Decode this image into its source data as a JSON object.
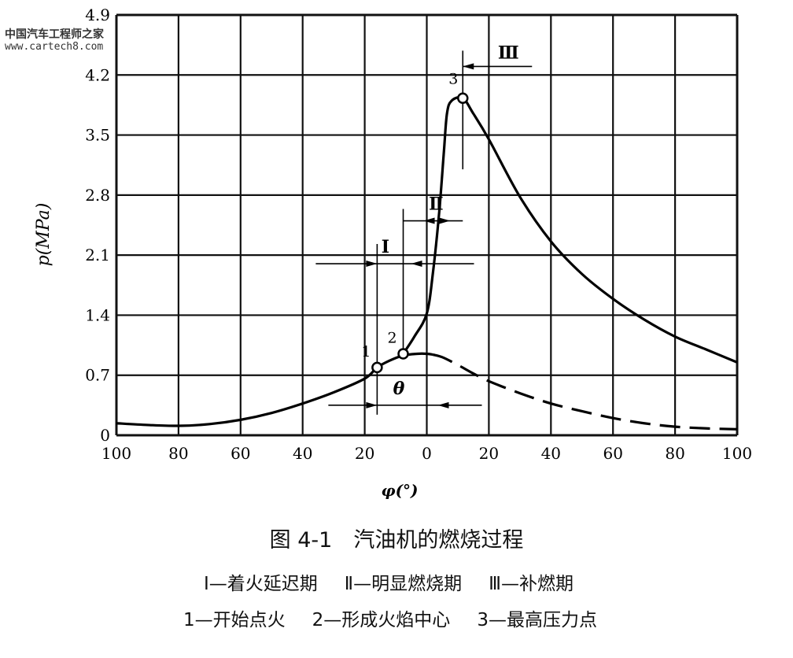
{
  "watermark": {
    "name": "中国汽车工程师之家",
    "url": "www.cartech8.com"
  },
  "chart_data": {
    "type": "line",
    "title": "图 4-1　汽油机的燃烧过程",
    "xlabel": "φ(°)",
    "ylabel": "p(MPa)",
    "xlim": [
      -100,
      100
    ],
    "ylim": [
      0,
      4.9
    ],
    "grid": true,
    "x_ticks": [
      -100,
      -80,
      -60,
      -40,
      -20,
      0,
      20,
      40,
      60,
      80,
      100
    ],
    "x_tick_labels": [
      "100",
      "80",
      "60",
      "40",
      "20",
      "0",
      "20",
      "40",
      "60",
      "80",
      "100"
    ],
    "y_ticks": [
      0,
      0.7,
      1.4,
      2.1,
      2.8,
      3.5,
      4.2,
      4.9
    ],
    "y_tick_labels": [
      "0",
      "0.7",
      "1.4",
      "2.1",
      "2.8",
      "3.5",
      "4.2",
      "4.9"
    ],
    "series": [
      {
        "style": "solid",
        "points": [
          [
            -100,
            0.14
          ],
          [
            -90,
            0.12
          ],
          [
            -80,
            0.11
          ],
          [
            -70,
            0.13
          ],
          [
            -60,
            0.18
          ],
          [
            -50,
            0.26
          ],
          [
            -40,
            0.37
          ],
          [
            -30,
            0.5
          ],
          [
            -20,
            0.66
          ],
          [
            -16,
            0.79
          ],
          [
            -12,
            0.87
          ],
          [
            -7.6,
            0.93
          ],
          [
            -3,
            0.95
          ],
          [
            0,
            0.95
          ],
          [
            2,
            0.94
          ]
        ]
      },
      {
        "style": "dashed",
        "points": [
          [
            2,
            0.94
          ],
          [
            5,
            0.91
          ],
          [
            10,
            0.82
          ],
          [
            15,
            0.72
          ],
          [
            20,
            0.63
          ],
          [
            30,
            0.49
          ],
          [
            40,
            0.37
          ],
          [
            50,
            0.28
          ],
          [
            60,
            0.2
          ],
          [
            70,
            0.14
          ],
          [
            80,
            0.1
          ],
          [
            90,
            0.08
          ],
          [
            100,
            0.07
          ]
        ]
      },
      {
        "style": "solid",
        "points": [
          [
            -7.6,
            0.95
          ],
          [
            -4,
            1.15
          ],
          [
            0,
            1.42
          ],
          [
            2,
            1.9
          ],
          [
            4,
            2.6
          ],
          [
            5.5,
            3.3
          ],
          [
            6.5,
            3.75
          ],
          [
            8,
            3.9
          ],
          [
            11.6,
            3.93
          ],
          [
            15,
            3.75
          ],
          [
            20,
            3.45
          ],
          [
            30,
            2.78
          ],
          [
            40,
            2.26
          ],
          [
            50,
            1.88
          ],
          [
            60,
            1.59
          ],
          [
            70,
            1.35
          ],
          [
            80,
            1.15
          ],
          [
            90,
            1.0
          ],
          [
            100,
            0.85
          ]
        ]
      }
    ],
    "markers": [
      {
        "label": "1",
        "x": -16,
        "y": 0.79
      },
      {
        "label": "2",
        "x": -7.6,
        "y": 0.95
      },
      {
        "label": "3",
        "x": 11.6,
        "y": 3.93
      }
    ],
    "intervals": [
      {
        "label": "Ⅰ",
        "from": -16,
        "to": -7.6,
        "p": 2.0
      },
      {
        "label": "Ⅱ",
        "from": -7.6,
        "to": 11.6,
        "p": 2.5
      },
      {
        "label": "Ⅲ",
        "from": 11.6,
        "to": 18,
        "p": 4.3
      },
      {
        "label": "θ",
        "from": -16,
        "to": 0,
        "p": 0.35
      }
    ],
    "legend_lines": [
      "Ⅰ—着火延迟期　Ⅱ—明显燃烧期　Ⅲ—补燃期",
      "1—开始点火　2—形成火焰中心　3—最高压力点"
    ]
  },
  "captions": {
    "title": "图 4-1　汽油机的燃烧过程",
    "phase_1": "Ⅰ—着火延迟期",
    "phase_2": "Ⅱ—明显燃烧期",
    "phase_3": "Ⅲ—补燃期",
    "point_1": "1—开始点火",
    "point_2": "2—形成火焰中心",
    "point_3": "3—最高压力点"
  }
}
